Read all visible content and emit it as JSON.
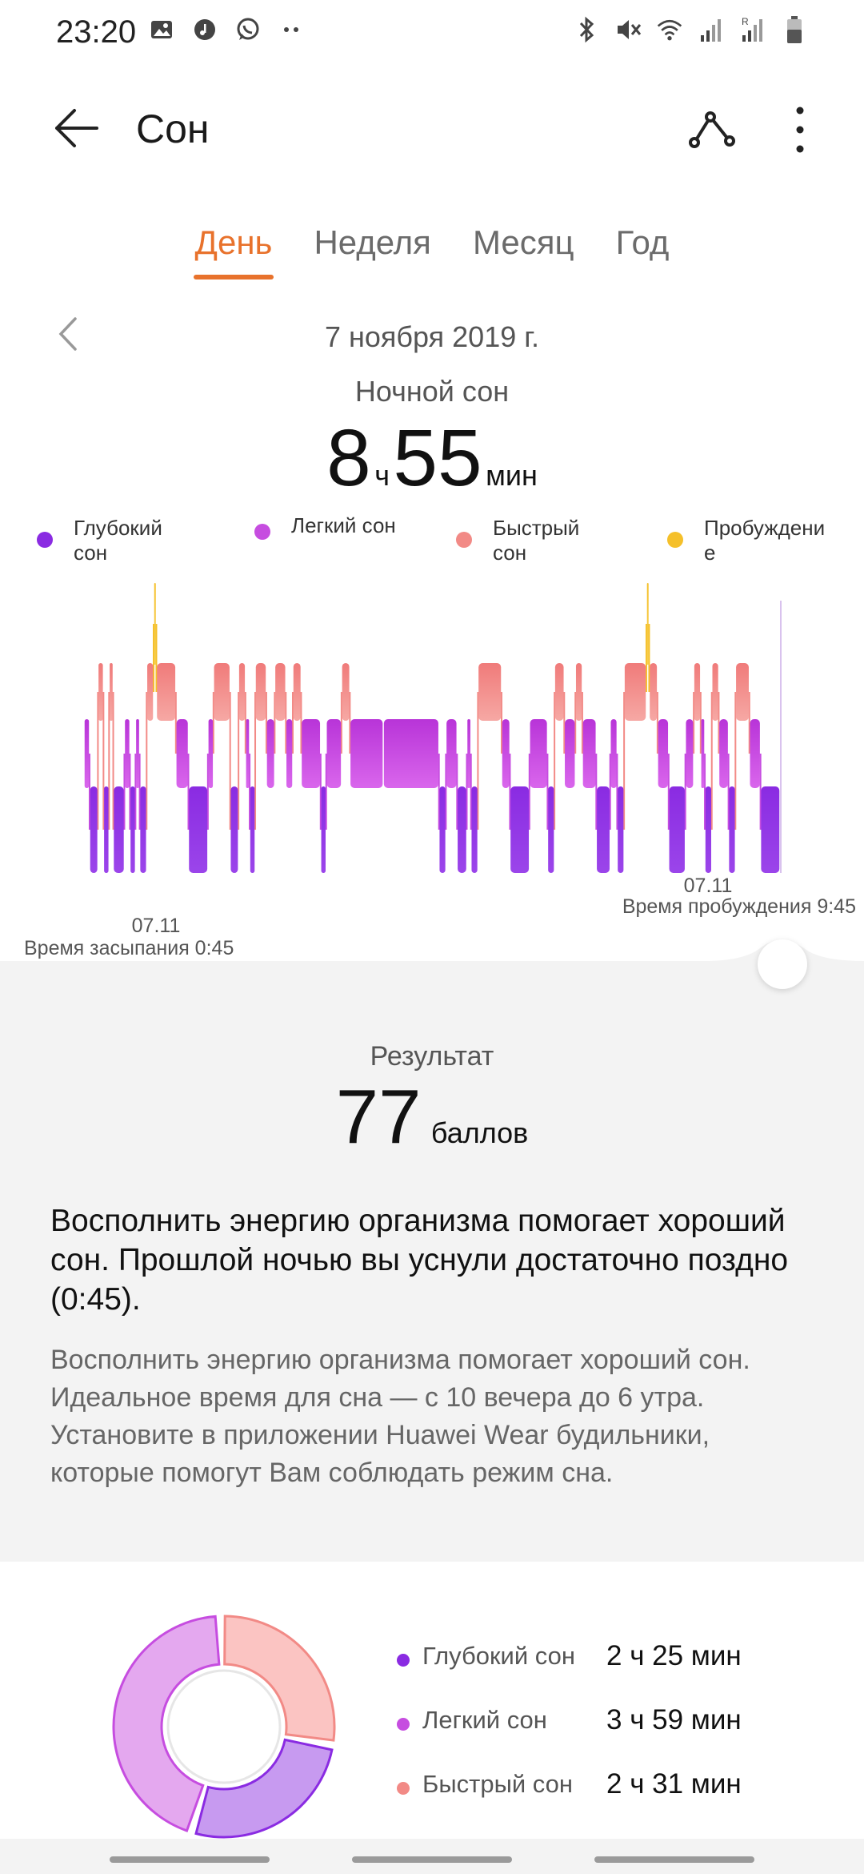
{
  "status_bar": {
    "time": "23:20",
    "left_icons": [
      "image-icon",
      "music-icon",
      "whatsapp-icon",
      "more-dots-icon"
    ],
    "right_icons": [
      "bluetooth-icon",
      "mute-icon",
      "wifi-icon",
      "signal-icon",
      "signal-roaming-icon",
      "battery-icon"
    ]
  },
  "header": {
    "title": "Сон",
    "back_icon": "arrow-left-icon",
    "share_icon": "share-icon",
    "more_icon": "more-vertical-icon"
  },
  "tabs": [
    {
      "label": "День",
      "active": true
    },
    {
      "label": "Неделя",
      "active": false
    },
    {
      "label": "Месяц",
      "active": false
    },
    {
      "label": "Год",
      "active": false
    }
  ],
  "date": "7 ноября 2019 г.",
  "section_label": "Ночной сон",
  "duration": {
    "hours": "8",
    "hours_unit": "ч",
    "minutes": "55",
    "minutes_unit": "мин"
  },
  "legend": [
    {
      "label": "Глубокий\nсон",
      "color": "#8a2be2"
    },
    {
      "label": "Легкий сон",
      "color": "#c64de0"
    },
    {
      "label": "Быстрый\nсон",
      "color": "#f28a86"
    },
    {
      "label": "Пробуждени\nе",
      "color": "#f5c02a"
    }
  ],
  "chart": {
    "sleep_date": "07.11",
    "sleep_label": "Время засыпания 0:45",
    "wake_date": "07.11",
    "wake_label": "Время пробуждения 9:45",
    "colors": {
      "deep": "#8a2be2",
      "light": "#c64de0",
      "rem": "#f28a86",
      "awake": "#f5c02a"
    }
  },
  "chart_data": {
    "type": "area",
    "stages": [
      "deep",
      "light",
      "rem",
      "awake"
    ],
    "start": "0:45",
    "end": "9:45",
    "segments": [
      {
        "stage": "light",
        "from": 0.0,
        "to": 0.008
      },
      {
        "stage": "deep",
        "from": 0.008,
        "to": 0.02
      },
      {
        "stage": "rem",
        "from": 0.02,
        "to": 0.028
      },
      {
        "stage": "deep",
        "from": 0.028,
        "to": 0.036
      },
      {
        "stage": "rem",
        "from": 0.036,
        "to": 0.042
      },
      {
        "stage": "deep",
        "from": 0.042,
        "to": 0.058
      },
      {
        "stage": "light",
        "from": 0.058,
        "to": 0.066
      },
      {
        "stage": "deep",
        "from": 0.066,
        "to": 0.074
      },
      {
        "stage": "light",
        "from": 0.074,
        "to": 0.08
      },
      {
        "stage": "deep",
        "from": 0.08,
        "to": 0.09
      },
      {
        "stage": "rem",
        "from": 0.09,
        "to": 0.1
      },
      {
        "stage": "awake",
        "from": 0.1,
        "to": 0.104
      },
      {
        "stage": "rem",
        "from": 0.104,
        "to": 0.132
      },
      {
        "stage": "light",
        "from": 0.132,
        "to": 0.15
      },
      {
        "stage": "deep",
        "from": 0.15,
        "to": 0.178
      },
      {
        "stage": "light",
        "from": 0.178,
        "to": 0.186
      },
      {
        "stage": "rem",
        "from": 0.186,
        "to": 0.21
      },
      {
        "stage": "deep",
        "from": 0.21,
        "to": 0.222
      },
      {
        "stage": "rem",
        "from": 0.222,
        "to": 0.232
      },
      {
        "stage": "light",
        "from": 0.232,
        "to": 0.238
      },
      {
        "stage": "deep",
        "from": 0.238,
        "to": 0.246
      },
      {
        "stage": "rem",
        "from": 0.246,
        "to": 0.262
      },
      {
        "stage": "light",
        "from": 0.262,
        "to": 0.274
      },
      {
        "stage": "rem",
        "from": 0.274,
        "to": 0.29
      },
      {
        "stage": "light",
        "from": 0.29,
        "to": 0.3
      },
      {
        "stage": "rem",
        "from": 0.3,
        "to": 0.312
      },
      {
        "stage": "light",
        "from": 0.312,
        "to": 0.34
      },
      {
        "stage": "deep",
        "from": 0.34,
        "to": 0.348
      },
      {
        "stage": "light",
        "from": 0.348,
        "to": 0.37
      },
      {
        "stage": "rem",
        "from": 0.37,
        "to": 0.382
      },
      {
        "stage": "light",
        "from": 0.382,
        "to": 0.43
      },
      {
        "stage": "light",
        "from": 0.43,
        "to": 0.51
      },
      {
        "stage": "deep",
        "from": 0.51,
        "to": 0.52
      },
      {
        "stage": "light",
        "from": 0.52,
        "to": 0.536
      },
      {
        "stage": "deep",
        "from": 0.536,
        "to": 0.55
      },
      {
        "stage": "light",
        "from": 0.55,
        "to": 0.556
      },
      {
        "stage": "deep",
        "from": 0.556,
        "to": 0.566
      },
      {
        "stage": "rem",
        "from": 0.566,
        "to": 0.6
      },
      {
        "stage": "light",
        "from": 0.6,
        "to": 0.612
      },
      {
        "stage": "deep",
        "from": 0.612,
        "to": 0.64
      },
      {
        "stage": "light",
        "from": 0.64,
        "to": 0.666
      },
      {
        "stage": "deep",
        "from": 0.666,
        "to": 0.676
      },
      {
        "stage": "rem",
        "from": 0.676,
        "to": 0.69
      },
      {
        "stage": "light",
        "from": 0.69,
        "to": 0.706
      },
      {
        "stage": "rem",
        "from": 0.706,
        "to": 0.716
      },
      {
        "stage": "light",
        "from": 0.716,
        "to": 0.736
      },
      {
        "stage": "deep",
        "from": 0.736,
        "to": 0.756
      },
      {
        "stage": "light",
        "from": 0.756,
        "to": 0.766
      },
      {
        "stage": "deep",
        "from": 0.766,
        "to": 0.776
      },
      {
        "stage": "rem",
        "from": 0.776,
        "to": 0.808
      },
      {
        "stage": "awake",
        "from": 0.808,
        "to": 0.812
      },
      {
        "stage": "rem",
        "from": 0.812,
        "to": 0.824
      },
      {
        "stage": "light",
        "from": 0.824,
        "to": 0.84
      },
      {
        "stage": "deep",
        "from": 0.84,
        "to": 0.864
      },
      {
        "stage": "light",
        "from": 0.864,
        "to": 0.876
      },
      {
        "stage": "rem",
        "from": 0.876,
        "to": 0.886
      },
      {
        "stage": "light",
        "from": 0.886,
        "to": 0.892
      },
      {
        "stage": "deep",
        "from": 0.892,
        "to": 0.902
      },
      {
        "stage": "rem",
        "from": 0.902,
        "to": 0.912
      },
      {
        "stage": "light",
        "from": 0.912,
        "to": 0.926
      },
      {
        "stage": "deep",
        "from": 0.926,
        "to": 0.936
      },
      {
        "stage": "rem",
        "from": 0.936,
        "to": 0.956
      },
      {
        "stage": "light",
        "from": 0.956,
        "to": 0.972
      },
      {
        "stage": "deep",
        "from": 0.972,
        "to": 1.0
      }
    ]
  },
  "result": {
    "label": "Результат",
    "score": "77",
    "unit": "баллов"
  },
  "advice": {
    "title": "Восполнить энергию организма помогает хороший сон. Прошлой ночью вы уснули достаточно поздно (0:45).",
    "body": "Восполнить энергию организма помогает хороший сон. Идеальное время для сна — с 10 вечера до 6 утра. Установите в приложении Huawei Wear будильники, которые помогут Вам соблюдать режим сна."
  },
  "breakdown": [
    {
      "label": "Глубокий сон",
      "value": "2 ч 25 мин",
      "minutes": 145,
      "color": "#8a2be2"
    },
    {
      "label": "Легкий сон",
      "value": "3 ч 59 мин",
      "minutes": 239,
      "color": "#c64de0"
    },
    {
      "label": "Быстрый сон",
      "value": "2 ч 31 мин",
      "minutes": 151,
      "color": "#f28a86"
    }
  ]
}
